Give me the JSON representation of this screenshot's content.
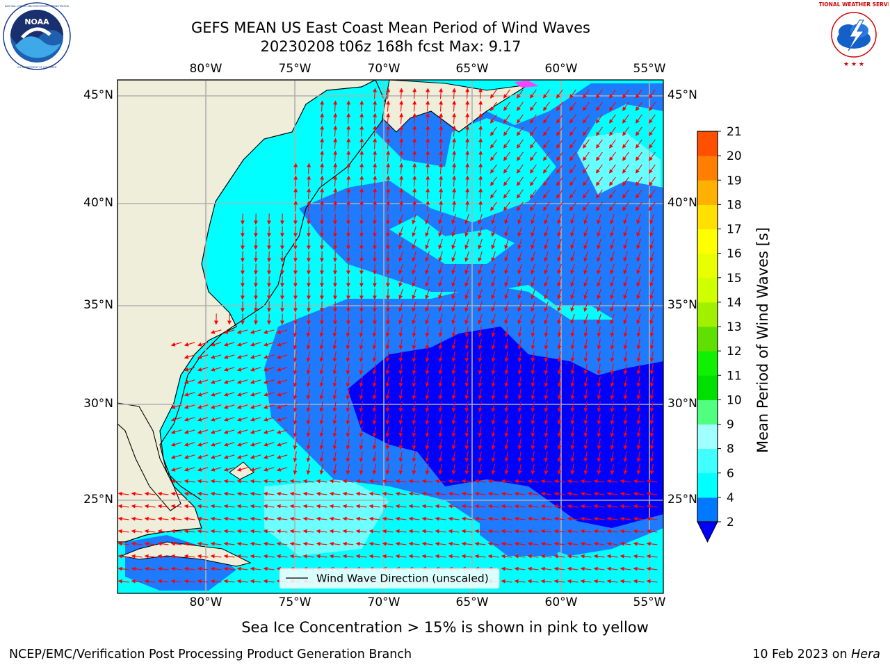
{
  "title": {
    "line1": "GEFS MEAN US East Coast Mean Period of Wind Waves",
    "line2": "20230208 t06z 168h fcst   Max: 9.17"
  },
  "map": {
    "lon_ticks_top": [
      "80°W",
      "75°W",
      "70°W",
      "65°W",
      "60°W",
      "55°W"
    ],
    "lon_ticks_bottom": [
      "80°W",
      "75°W",
      "70°W",
      "65°W",
      "60°W",
      "55°W"
    ],
    "lat_ticks_left": [
      "45°N",
      "40°N",
      "35°N",
      "30°N",
      "25°N"
    ],
    "lat_ticks_right": [
      "45°N",
      "40°N",
      "35°N",
      "30°N",
      "25°N"
    ],
    "legend_label": "Wind Wave Direction (unscaled)",
    "colors": {
      "land": "#efeedb",
      "grid": "#b0b0b0",
      "arrow": "#ff0000",
      "period_2_4": "#0000ff",
      "period_4_6_dark": "#1e7bff",
      "period_cyan": "#00ffff",
      "period_light": "#80ffff",
      "deep": "#0000e0"
    }
  },
  "colorbar": {
    "title": "Mean Period of Wind Waves [s]",
    "ticks": [
      "2",
      "4",
      "6",
      "8",
      "9",
      "10",
      "11",
      "12",
      "13",
      "14",
      "15",
      "16",
      "17",
      "18",
      "19",
      "20",
      "21"
    ],
    "colors": [
      "#0078ff",
      "#00ffff",
      "#40ffff",
      "#a0ffff",
      "#50ff80",
      "#00e000",
      "#10f000",
      "#60e000",
      "#a0f000",
      "#d0ff00",
      "#e8ff00",
      "#ffff00",
      "#ffe000",
      "#ffb000",
      "#ff8000",
      "#ff5000",
      "#ff2000",
      "#ff0000"
    ],
    "under_color": "#0000ff"
  },
  "caption": "Sea Ice Concentration > 15% is shown in pink to yellow",
  "footer": {
    "left": "NCEP/EMC/Verification Post Processing Product Generation Branch",
    "right_date": "10 Feb 2023 on ",
    "right_machine": "Hera"
  },
  "logos": {
    "noaa_text": "NOAA",
    "noaa_ring": "NATIONAL OCEANIC AND ATMOSPHERIC ADMINISTRATION",
    "noaa_ring_bottom": "U.S. DEPARTMENT OF COMMERCE",
    "nws_ring": "NATIONAL WEATHER SERVICE"
  }
}
